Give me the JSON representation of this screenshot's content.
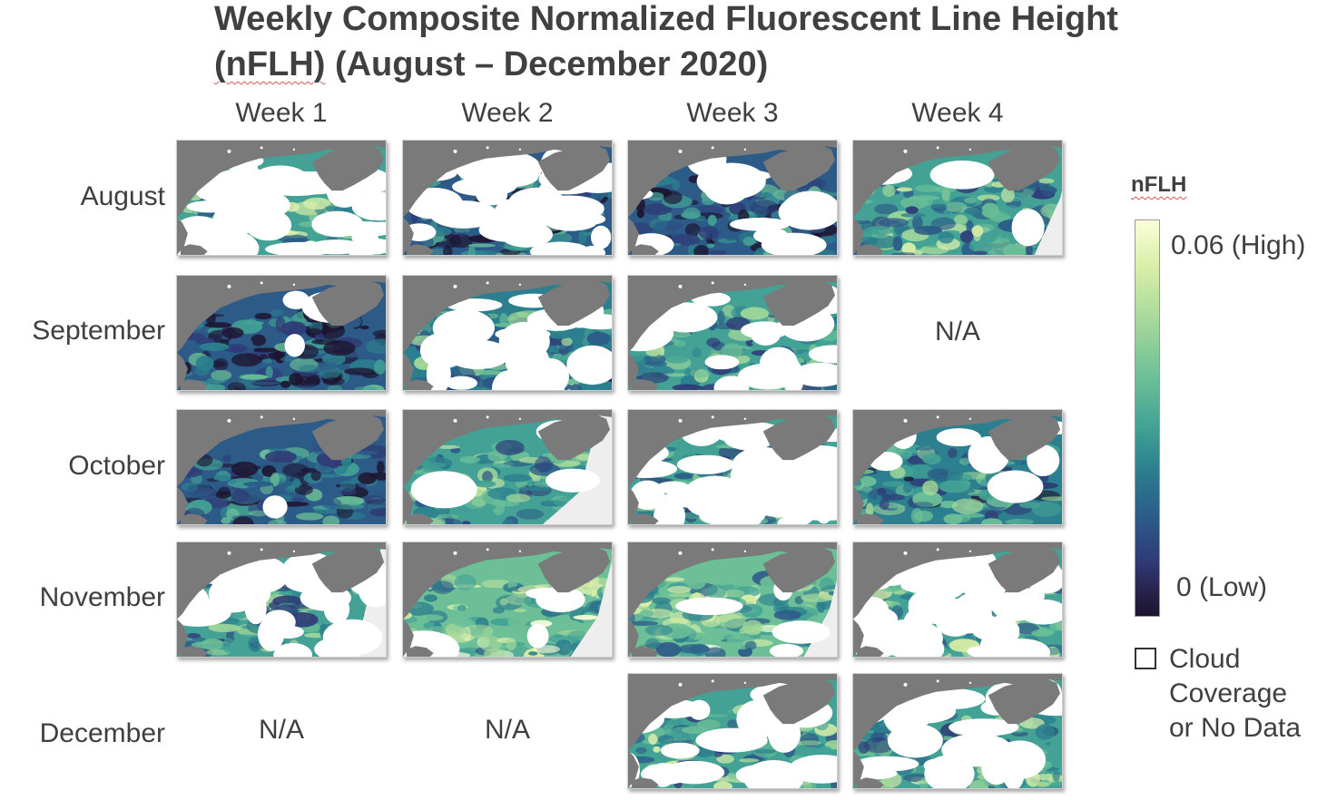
{
  "title": {
    "line1": "Weekly Composite Normalized Fluorescent Line Height",
    "line2_a": "(nFLH)",
    "line2_b": " (August – December 2020)"
  },
  "columns": [
    "Week 1",
    "Week 2",
    "Week 3",
    "Week 4"
  ],
  "rows": [
    "August",
    "September",
    "October",
    "November",
    "December"
  ],
  "na_label": "N/A",
  "legend": {
    "title": "nFLH",
    "high_label": "0.06 (High)",
    "low_label": "0 (Low)",
    "cloud_label_1": "Cloud",
    "cloud_label_2": "Coverage",
    "cloud_label_3": "or No Data"
  },
  "colors": {
    "land": "#7a7a7a",
    "cloud": "#ffffff",
    "nodata": "#eeeeee",
    "colormap": [
      "#1d1430",
      "#2f3c77",
      "#2c5b88",
      "#2c7f8e",
      "#43a295",
      "#6cbf97",
      "#a3d79a",
      "#d8eea8",
      "#fbfdd9"
    ]
  },
  "panels": [
    {
      "row": "August",
      "week": "Week 1",
      "available": true,
      "cloud": 0.62,
      "level": 0.55,
      "nodata": 0.0
    },
    {
      "row": "August",
      "week": "Week 2",
      "available": true,
      "cloud": 0.55,
      "level": 0.28,
      "nodata": 0.0
    },
    {
      "row": "August",
      "week": "Week 3",
      "available": true,
      "cloud": 0.18,
      "level": 0.25,
      "nodata": 0.0
    },
    {
      "row": "August",
      "week": "Week 4",
      "available": true,
      "cloud": 0.05,
      "level": 0.5,
      "nodata": 0.1
    },
    {
      "row": "September",
      "week": "Week 1",
      "available": true,
      "cloud": 0.05,
      "level": 0.2,
      "nodata": 0.0
    },
    {
      "row": "September",
      "week": "Week 2",
      "available": true,
      "cloud": 0.35,
      "level": 0.42,
      "nodata": 0.0
    },
    {
      "row": "September",
      "week": "Week 3",
      "available": true,
      "cloud": 0.3,
      "level": 0.45,
      "nodata": 0.0
    },
    {
      "row": "September",
      "week": "Week 4",
      "available": false
    },
    {
      "row": "October",
      "week": "Week 1",
      "available": true,
      "cloud": 0.04,
      "level": 0.28,
      "nodata": 0.0
    },
    {
      "row": "October",
      "week": "Week 2",
      "available": true,
      "cloud": 0.05,
      "level": 0.5,
      "nodata": 0.25
    },
    {
      "row": "October",
      "week": "Week 3",
      "available": true,
      "cloud": 0.72,
      "level": 0.45,
      "nodata": 0.0
    },
    {
      "row": "October",
      "week": "Week 4",
      "available": true,
      "cloud": 0.12,
      "level": 0.38,
      "nodata": 0.0
    },
    {
      "row": "November",
      "week": "Week 1",
      "available": true,
      "cloud": 0.45,
      "level": 0.45,
      "nodata": 0.2
    },
    {
      "row": "November",
      "week": "Week 2",
      "available": true,
      "cloud": 0.1,
      "level": 0.62,
      "nodata": 0.15
    },
    {
      "row": "November",
      "week": "Week 3",
      "available": true,
      "cloud": 0.08,
      "level": 0.6,
      "nodata": 0.12
    },
    {
      "row": "November",
      "week": "Week 4",
      "available": true,
      "cloud": 0.72,
      "level": 0.55,
      "nodata": 0.0
    },
    {
      "row": "December",
      "week": "Week 1",
      "available": false
    },
    {
      "row": "December",
      "week": "Week 2",
      "available": false
    },
    {
      "row": "December",
      "week": "Week 3",
      "available": true,
      "cloud": 0.3,
      "level": 0.5,
      "nodata": 0.0
    },
    {
      "row": "December",
      "week": "Week 4",
      "available": true,
      "cloud": 0.45,
      "level": 0.5,
      "nodata": 0.0
    }
  ]
}
